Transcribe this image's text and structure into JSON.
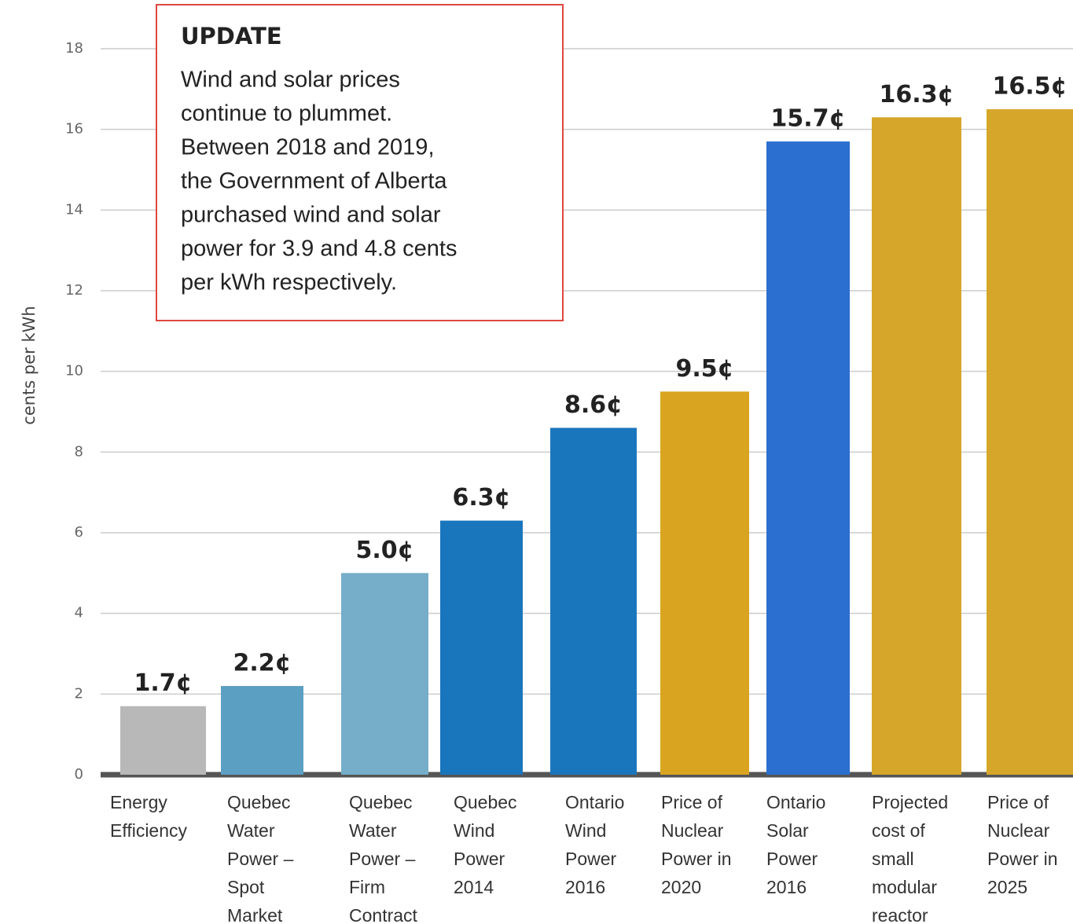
{
  "chart_data": {
    "type": "bar",
    "y_label": "cents per kWh",
    "categories": [
      "Energy Efficiency",
      "Quebec Water Power – Spot Market",
      "Quebec Water Power – Firm Contract",
      "Quebec Wind Power 2014",
      "Ontario Wind Power 2016",
      "Price of Nuclear Power in 2020",
      "Ontario Solar Power 2016",
      "Projected cost of small modular reactor",
      "Price of Nuclear Power in 2025"
    ],
    "values": [
      1.7,
      2.2,
      5.0,
      6.3,
      8.6,
      9.5,
      15.7,
      16.3,
      16.5
    ],
    "value_labels": [
      "1.7¢",
      "2.2¢",
      "5.0¢",
      "6.3¢",
      "8.6¢",
      "9.5¢",
      "15.7¢",
      "16.3¢",
      "16.5¢"
    ],
    "colors": [
      "#b8b8b8",
      "#5b9fc2",
      "#76adc9",
      "#1a76bc",
      "#1a76bc",
      "#d9a521",
      "#2b6fd0",
      "#d6a62a",
      "#d6a62a"
    ],
    "ylim": [
      0,
      18
    ],
    "yticks": [
      0,
      2,
      4,
      6,
      8,
      10,
      12,
      14,
      16,
      18
    ],
    "grid": true,
    "annotation": {
      "title": "UPDATE",
      "lines": [
        "Wind and solar prices",
        "continue to plummet.",
        "Between 2018 and 2019,",
        "the Government of Alberta",
        "purchased wind and solar",
        "power for 3.9 and 4.8 cents",
        "per kWh respectively."
      ]
    }
  }
}
